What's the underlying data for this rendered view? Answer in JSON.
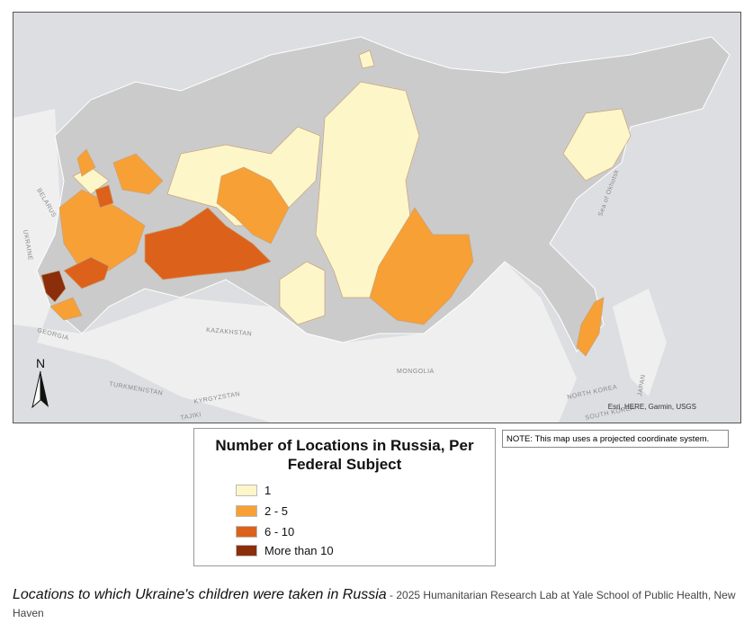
{
  "map": {
    "labels": [
      "BELARUS",
      "UKRAINE",
      "GEORGIA",
      "KAZAKHSTAN",
      "MONGOLIA",
      "TURKMENISTAN",
      "KYRGYZSTAN",
      "TAJIKI",
      "NORTH KOREA",
      "SOUTH KOREA",
      "JAPAN",
      "Sea of Okhotsk"
    ],
    "attribution": "Esri, HERE, Garmin, USGS",
    "north": "N"
  },
  "legend": {
    "title": "Number of Locations in Russia, Per Federal Subject",
    "items": [
      {
        "label": "1",
        "color": "#fdf6c9"
      },
      {
        "label": "2 - 5",
        "color": "#f7a035"
      },
      {
        "label": "6 - 10",
        "color": "#dc621c"
      },
      {
        "label": "More than 10",
        "color": "#8b2e0c"
      }
    ]
  },
  "note": "NOTE: This map uses a projected coordinate system.",
  "caption": {
    "title": "Locations to which Ukraine's children were taken in Russia",
    "source": "- 2025 Humanitarian Research Lab at Yale School of Public Health, New Haven"
  }
}
